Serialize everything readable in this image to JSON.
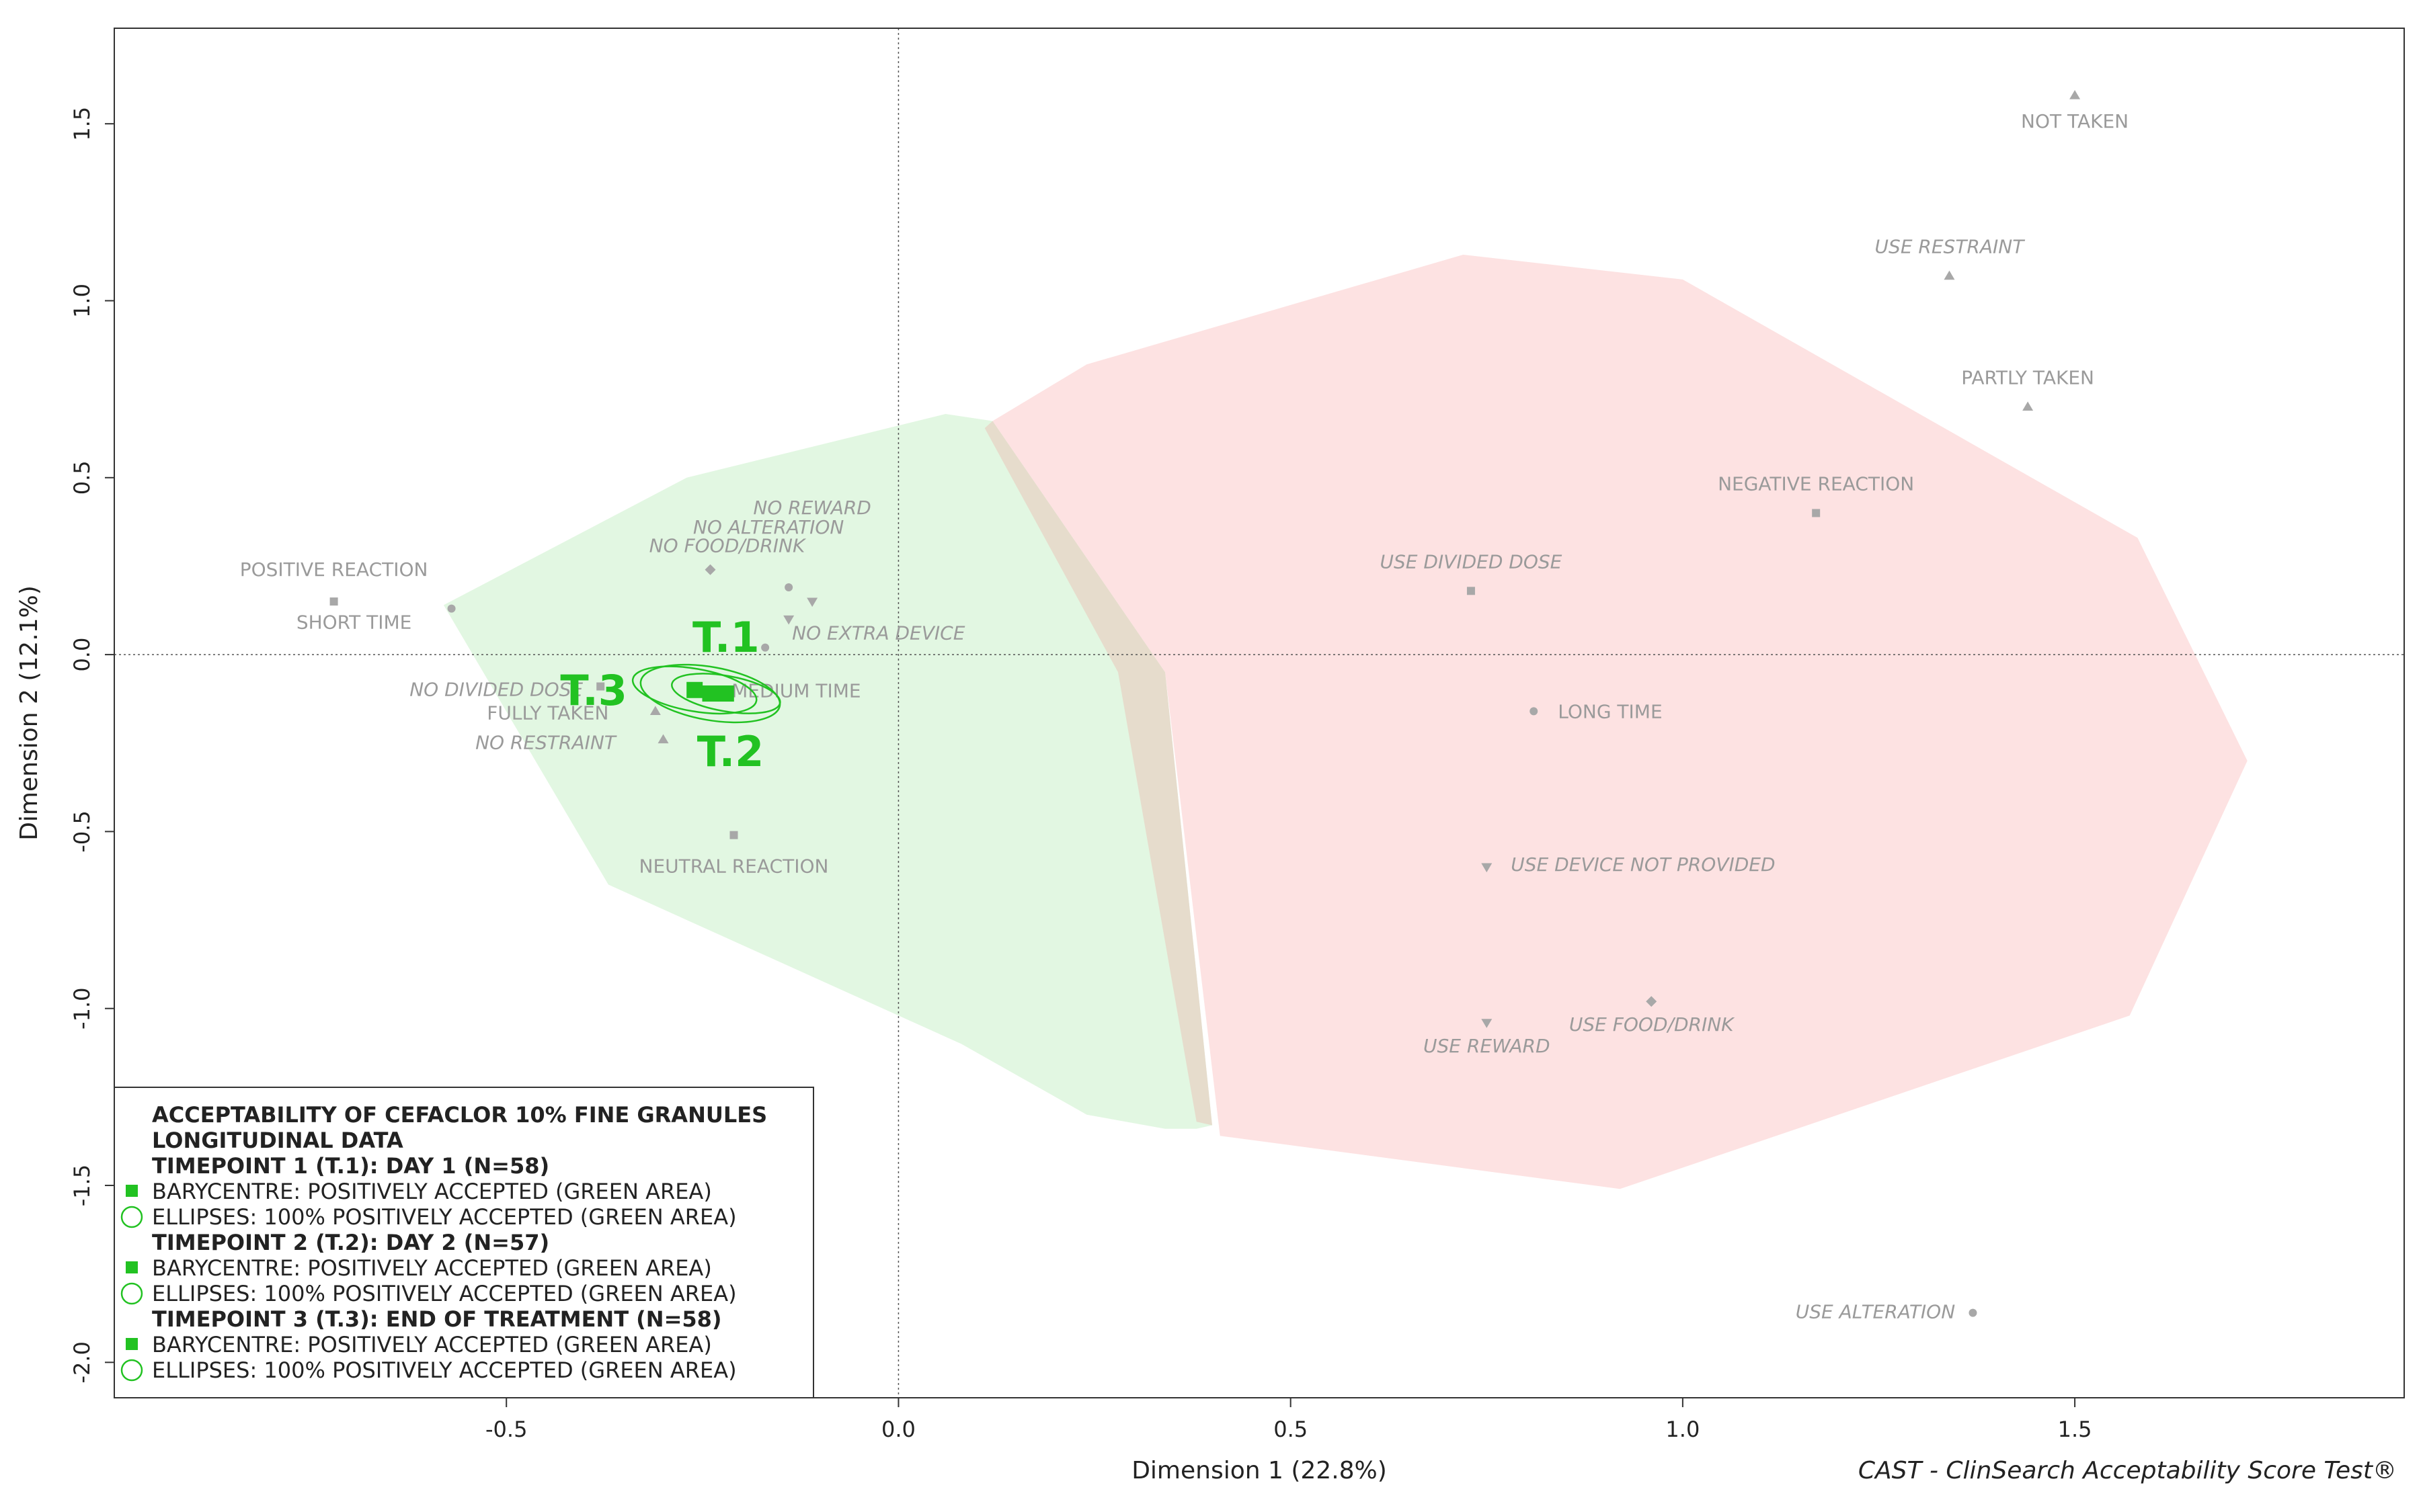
{
  "chart_data": {
    "type": "scatter",
    "xlabel": "Dimension 1 (22.8%)",
    "ylabel": "Dimension 2 (12.1%)",
    "credit": "CAST - ClinSearch Acceptability Score Test®",
    "xlim": [
      -1.0,
      1.92
    ],
    "ylim": [
      -2.1,
      1.77
    ],
    "xticks": [
      -0.5,
      0.0,
      0.5,
      1.0,
      1.5
    ],
    "yticks": [
      1.5,
      1.0,
      0.5,
      0.0,
      -0.5,
      -1.0,
      -1.5,
      -2.0
    ],
    "reference_lines": {
      "x": 0.0,
      "y": 0.0
    },
    "regions": [
      {
        "name": "positively accepted",
        "color": "#e2f7e2",
        "polygon": [
          [
            -0.58,
            0.14
          ],
          [
            -0.27,
            0.5
          ],
          [
            0.06,
            0.68
          ],
          [
            0.12,
            0.66
          ],
          [
            0.34,
            -0.05
          ],
          [
            0.4,
            -1.33
          ],
          [
            0.38,
            -1.34
          ],
          [
            0.34,
            -1.34
          ],
          [
            0.24,
            -1.3
          ],
          [
            0.08,
            -1.1
          ],
          [
            -0.22,
            -0.8
          ],
          [
            -0.37,
            -0.65
          ],
          [
            -0.58,
            0.14
          ]
        ]
      },
      {
        "name": "not accepted",
        "color": "#fde2e2",
        "polygon": [
          [
            0.12,
            0.66
          ],
          [
            0.24,
            0.82
          ],
          [
            0.72,
            1.13
          ],
          [
            1.0,
            1.06
          ],
          [
            1.58,
            0.33
          ],
          [
            1.72,
            -0.3
          ],
          [
            1.57,
            -1.02
          ],
          [
            0.92,
            -1.51
          ],
          [
            0.41,
            -1.36
          ],
          [
            0.34,
            -0.05
          ],
          [
            0.12,
            0.66
          ]
        ]
      },
      {
        "name": "overlap",
        "color": "#e6dccc",
        "polygon": [
          [
            0.12,
            0.66
          ],
          [
            0.34,
            -0.05
          ],
          [
            0.4,
            -1.33
          ],
          [
            0.38,
            -1.32
          ],
          [
            0.28,
            -0.05
          ],
          [
            0.11,
            0.64
          ]
        ]
      }
    ],
    "categories": [
      {
        "label": "NOT TAKEN",
        "x": 1.5,
        "y": 1.58,
        "marker": "triangle",
        "italic": false
      },
      {
        "label": "USE RESTRAINT",
        "x": 1.34,
        "y": 1.07,
        "marker": "triangle",
        "italic": true
      },
      {
        "label": "PARTLY TAKEN",
        "x": 1.44,
        "y": 0.7,
        "marker": "triangle",
        "italic": false
      },
      {
        "label": "NEGATIVE REACTION",
        "x": 1.17,
        "y": 0.4,
        "marker": "square",
        "italic": false
      },
      {
        "label": "USE DIVIDED DOSE",
        "x": 0.73,
        "y": 0.18,
        "marker": "square",
        "italic": true
      },
      {
        "label": "LONG TIME",
        "x": 0.81,
        "y": -0.16,
        "marker": "dot",
        "italic": false
      },
      {
        "label": "USE DEVICE NOT PROVIDED",
        "x": 0.75,
        "y": -0.6,
        "marker": "triangle-down",
        "italic": true
      },
      {
        "label": "USE REWARD",
        "x": 0.75,
        "y": -1.04,
        "marker": "triangle-down",
        "italic": true
      },
      {
        "label": "USE FOOD/DRINK",
        "x": 0.96,
        "y": -0.98,
        "marker": "diamond",
        "italic": true
      },
      {
        "label": "USE ALTERATION",
        "x": 1.37,
        "y": -1.86,
        "marker": "dot",
        "italic": true
      },
      {
        "label": "POSITIVE REACTION",
        "x": -0.72,
        "y": 0.15,
        "marker": "square",
        "italic": false
      },
      {
        "label": "SHORT TIME",
        "x": -0.57,
        "y": 0.13,
        "marker": "dot",
        "italic": false
      },
      {
        "label": "NO REWARD",
        "x": -0.11,
        "y": 0.15,
        "marker": "triangle-down",
        "italic": true
      },
      {
        "label": "NO ALTERATION",
        "x": -0.14,
        "y": 0.19,
        "marker": "dot",
        "italic": true
      },
      {
        "label": "NO FOOD/DRINK",
        "x": -0.24,
        "y": 0.24,
        "marker": "diamond",
        "italic": true
      },
      {
        "label": "NO EXTRA DEVICE",
        "x": -0.14,
        "y": 0.1,
        "marker": "triangle-down",
        "italic": true
      },
      {
        "label": "MEDIUM TIME",
        "x": -0.17,
        "y": 0.02,
        "marker": "dot",
        "italic": false
      },
      {
        "label": "NO DIVIDED DOSE",
        "x": -0.38,
        "y": -0.09,
        "marker": "square",
        "italic": true
      },
      {
        "label": "FULLY TAKEN",
        "x": -0.31,
        "y": -0.16,
        "marker": "triangle",
        "italic": false
      },
      {
        "label": "NO RESTRAINT",
        "x": -0.3,
        "y": -0.24,
        "marker": "triangle",
        "italic": true
      },
      {
        "label": "NEUTRAL REACTION",
        "x": -0.21,
        "y": -0.51,
        "marker": "square",
        "italic": false
      }
    ],
    "timepoints": [
      {
        "label": "T.1",
        "x": -0.22,
        "y": -0.11,
        "ellipse_rx": 0.07,
        "ellipse_ry": 0.05
      },
      {
        "label": "T.2",
        "x": -0.24,
        "y": -0.11,
        "ellipse_rx": 0.09,
        "ellipse_ry": 0.075
      },
      {
        "label": "T.3",
        "x": -0.26,
        "y": -0.1,
        "ellipse_rx": 0.08,
        "ellipse_ry": 0.06
      }
    ],
    "timepoint_color": "#22c222",
    "legend": {
      "title": "ACCEPTABILITY OF CEFACLOR 10% FINE GRANULES",
      "subtitle": "LONGITUDINAL DATA",
      "groups": [
        {
          "heading": "TIMEPOINT 1 (T.1): DAY 1 (N=58)",
          "barycentre": "BARYCENTRE: POSITIVELY ACCEPTED (GREEN AREA)",
          "ellipses": "ELLIPSES: 100% POSITIVELY ACCEPTED (GREEN AREA)"
        },
        {
          "heading": "TIMEPOINT 2 (T.2): DAY 2 (N=57)",
          "barycentre": "BARYCENTRE: POSITIVELY ACCEPTED (GREEN AREA)",
          "ellipses": "ELLIPSES: 100% POSITIVELY ACCEPTED (GREEN AREA)"
        },
        {
          "heading": "TIMEPOINT 3 (T.3): END OF TREATMENT (N=58)",
          "barycentre": "BARYCENTRE: POSITIVELY ACCEPTED (GREEN AREA)",
          "ellipses": "ELLIPSES: 100% POSITIVELY ACCEPTED (GREEN AREA)"
        }
      ]
    }
  }
}
